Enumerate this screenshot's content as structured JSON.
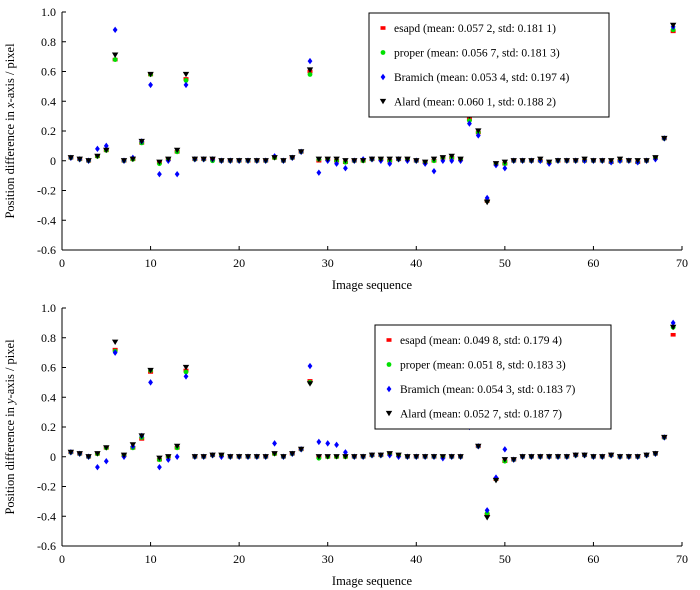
{
  "chart_data": [
    {
      "type": "scatter",
      "xlabel": "Image sequence",
      "ylabel_parts": [
        "Position difference in ",
        "x",
        "-axis / pixel"
      ],
      "xlim": [
        0,
        70
      ],
      "ylim": [
        -0.6,
        1.0
      ],
      "xticks": [
        0,
        10,
        20,
        30,
        40,
        50,
        60,
        70
      ],
      "yticks": [
        -0.6,
        -0.4,
        -0.2,
        0,
        0.2,
        0.4,
        0.6,
        0.8,
        1.0
      ],
      "grid": false,
      "legend_position": "top-right",
      "x": [
        1,
        2,
        3,
        4,
        5,
        6,
        7,
        8,
        9,
        10,
        11,
        12,
        13,
        14,
        15,
        16,
        17,
        18,
        19,
        20,
        21,
        22,
        23,
        24,
        25,
        26,
        27,
        28,
        29,
        30,
        31,
        32,
        33,
        34,
        35,
        36,
        37,
        38,
        39,
        40,
        41,
        42,
        43,
        44,
        45,
        46,
        47,
        48,
        49,
        50,
        51,
        52,
        53,
        54,
        55,
        56,
        57,
        58,
        59,
        60,
        61,
        62,
        63,
        64,
        65,
        66,
        67,
        68,
        69
      ],
      "series": [
        {
          "name": "esapd (mean: 0.057 2, std: 0.181 1)",
          "color": "#ff0000",
          "marker": "square",
          "values": [
            0.02,
            0.01,
            0.0,
            0.03,
            0.07,
            0.68,
            0.0,
            0.01,
            0.12,
            0.58,
            -0.01,
            0.01,
            0.06,
            0.55,
            0.01,
            0.01,
            0.01,
            0.0,
            0.0,
            0.0,
            0.0,
            0.0,
            0.0,
            0.02,
            0.0,
            0.02,
            0.06,
            0.6,
            0.0,
            0.01,
            0.0,
            -0.01,
            0.0,
            0.0,
            0.01,
            0.01,
            0.0,
            0.01,
            0.01,
            0.0,
            -0.01,
            0.0,
            0.02,
            0.02,
            0.01,
            0.28,
            0.19,
            -0.27,
            -0.02,
            -0.02,
            0.0,
            0.0,
            0.0,
            0.0,
            -0.01,
            0.0,
            0.0,
            0.0,
            0.0,
            0.0,
            0.0,
            -0.01,
            0.0,
            0.0,
            -0.01,
            0.0,
            0.02,
            0.15,
            0.87
          ]
        },
        {
          "name": "proper (mean: 0.056 7, std: 0.181 3)",
          "color": "#00e000",
          "marker": "circle",
          "values": [
            0.02,
            0.01,
            0.0,
            0.03,
            0.07,
            0.68,
            0.0,
            0.01,
            0.12,
            0.58,
            -0.02,
            0.01,
            0.06,
            0.54,
            0.01,
            0.01,
            0.0,
            0.0,
            0.0,
            0.0,
            0.0,
            0.0,
            0.0,
            0.02,
            0.0,
            0.02,
            0.06,
            0.58,
            0.01,
            0.01,
            0.0,
            -0.01,
            0.0,
            0.0,
            0.01,
            0.01,
            0.0,
            0.01,
            0.01,
            0.0,
            -0.01,
            0.0,
            0.02,
            0.02,
            0.01,
            0.27,
            0.19,
            -0.27,
            -0.02,
            -0.02,
            0.0,
            0.0,
            0.0,
            0.0,
            -0.01,
            0.0,
            0.0,
            0.0,
            0.0,
            0.0,
            0.0,
            -0.01,
            0.0,
            0.0,
            -0.01,
            0.0,
            0.02,
            0.15,
            0.88
          ]
        },
        {
          "name": "Bramich (mean: 0.053 4, std: 0.197 4)",
          "color": "#0000ff",
          "marker": "diamond",
          "values": [
            0.02,
            0.01,
            0.0,
            0.08,
            0.1,
            0.88,
            0.0,
            0.02,
            0.13,
            0.51,
            -0.09,
            0.0,
            -0.09,
            0.51,
            0.01,
            0.01,
            0.01,
            0.0,
            0.0,
            0.0,
            0.0,
            0.0,
            0.0,
            0.03,
            0.0,
            0.02,
            0.06,
            0.67,
            -0.08,
            0.0,
            -0.02,
            -0.05,
            0.0,
            0.01,
            0.01,
            0.0,
            -0.02,
            0.01,
            0.0,
            0.0,
            -0.02,
            -0.07,
            0.0,
            0.0,
            0.0,
            0.25,
            0.17,
            -0.25,
            -0.03,
            -0.05,
            0.0,
            0.0,
            0.0,
            0.0,
            -0.02,
            0.0,
            0.0,
            0.0,
            0.0,
            0.0,
            0.0,
            -0.01,
            0.0,
            0.0,
            -0.01,
            0.0,
            0.01,
            0.15,
            0.9
          ]
        },
        {
          "name": "Alard (mean: 0.060 1, std: 0.188 2)",
          "color": "#000000",
          "marker": "triangle-down",
          "values": [
            0.02,
            0.01,
            0.0,
            0.03,
            0.07,
            0.71,
            0.0,
            0.01,
            0.13,
            0.58,
            -0.01,
            0.01,
            0.07,
            0.58,
            0.01,
            0.01,
            0.01,
            0.0,
            0.0,
            0.0,
            0.0,
            0.0,
            0.0,
            0.02,
            0.0,
            0.02,
            0.06,
            0.61,
            0.01,
            0.01,
            0.01,
            0.0,
            0.0,
            0.0,
            0.01,
            0.01,
            0.01,
            0.01,
            0.01,
            0.0,
            -0.01,
            0.01,
            0.02,
            0.03,
            0.01,
            0.3,
            0.2,
            -0.28,
            -0.02,
            -0.01,
            0.0,
            0.0,
            0.0,
            0.01,
            -0.01,
            0.0,
            0.0,
            0.0,
            0.01,
            0.0,
            0.0,
            0.0,
            0.01,
            0.0,
            0.0,
            0.0,
            0.02,
            0.15,
            0.91
          ]
        }
      ]
    },
    {
      "type": "scatter",
      "xlabel": "Image sequence",
      "ylabel_parts": [
        "Position difference in ",
        "y",
        "-axis / pixel"
      ],
      "xlim": [
        0,
        70
      ],
      "ylim": [
        -0.6,
        1.0
      ],
      "xticks": [
        0,
        10,
        20,
        30,
        40,
        50,
        60,
        70
      ],
      "yticks": [
        -0.6,
        -0.4,
        -0.2,
        0,
        0.2,
        0.4,
        0.6,
        0.8,
        1.0
      ],
      "grid": false,
      "legend_position": "top-right",
      "x": [
        1,
        2,
        3,
        4,
        5,
        6,
        7,
        8,
        9,
        10,
        11,
        12,
        13,
        14,
        15,
        16,
        17,
        18,
        19,
        20,
        21,
        22,
        23,
        24,
        25,
        26,
        27,
        28,
        29,
        30,
        31,
        32,
        33,
        34,
        35,
        36,
        37,
        38,
        39,
        40,
        41,
        42,
        43,
        44,
        45,
        46,
        47,
        48,
        49,
        50,
        51,
        52,
        53,
        54,
        55,
        56,
        57,
        58,
        59,
        60,
        61,
        62,
        63,
        64,
        65,
        66,
        67,
        68,
        69
      ],
      "series": [
        {
          "name": "esapd (mean: 0.049 8, std: 0.179 4)",
          "color": "#ff0000",
          "marker": "square",
          "values": [
            0.03,
            0.02,
            0.0,
            0.02,
            0.06,
            0.72,
            0.01,
            0.06,
            0.12,
            0.57,
            -0.02,
            0.0,
            0.06,
            0.58,
            0.0,
            0.0,
            0.01,
            0.01,
            0.0,
            0.0,
            0.0,
            0.0,
            0.0,
            0.02,
            0.0,
            0.02,
            0.05,
            0.51,
            0.0,
            0.0,
            0.0,
            0.0,
            0.0,
            0.0,
            0.01,
            0.01,
            0.02,
            0.01,
            0.0,
            0.0,
            0.0,
            0.0,
            0.0,
            0.0,
            0.0,
            0.22,
            0.07,
            -0.39,
            -0.15,
            -0.03,
            -0.02,
            0.0,
            0.0,
            0.0,
            0.0,
            0.0,
            0.0,
            0.01,
            0.01,
            0.0,
            0.0,
            0.01,
            0.0,
            0.0,
            0.0,
            0.01,
            0.02,
            0.13,
            0.82
          ]
        },
        {
          "name": "proper (mean: 0.051 8, std: 0.183 3)",
          "color": "#00e000",
          "marker": "circle",
          "values": [
            0.03,
            0.02,
            0.0,
            0.02,
            0.06,
            0.71,
            0.01,
            0.06,
            0.13,
            0.58,
            -0.02,
            0.0,
            0.06,
            0.57,
            0.0,
            0.0,
            0.01,
            0.01,
            0.0,
            0.0,
            0.0,
            0.0,
            0.0,
            0.02,
            0.0,
            0.02,
            0.05,
            0.5,
            -0.01,
            0.0,
            0.0,
            0.0,
            0.0,
            0.0,
            0.01,
            0.01,
            0.02,
            0.01,
            0.0,
            0.0,
            0.0,
            0.0,
            0.0,
            0.0,
            0.0,
            0.22,
            0.07,
            -0.38,
            -0.15,
            -0.03,
            -0.02,
            0.0,
            0.0,
            0.0,
            0.0,
            0.0,
            0.0,
            0.01,
            0.01,
            0.0,
            0.0,
            0.01,
            0.0,
            0.0,
            0.0,
            0.01,
            0.02,
            0.13,
            0.87
          ]
        },
        {
          "name": "Bramich (mean: 0.054 3, std: 0.183 7)",
          "color": "#0000ff",
          "marker": "diamond",
          "values": [
            0.03,
            0.02,
            0.0,
            -0.07,
            -0.03,
            0.7,
            0.0,
            0.07,
            0.14,
            0.5,
            -0.07,
            -0.02,
            0.0,
            0.54,
            0.0,
            0.0,
            0.01,
            0.0,
            0.0,
            0.0,
            0.0,
            0.0,
            0.0,
            0.09,
            0.0,
            0.02,
            0.05,
            0.61,
            0.1,
            0.09,
            0.08,
            0.03,
            0.0,
            0.0,
            0.01,
            0.01,
            0.01,
            0.0,
            0.0,
            0.0,
            0.0,
            0.0,
            -0.01,
            0.0,
            0.0,
            0.2,
            0.07,
            -0.36,
            -0.14,
            0.05,
            -0.02,
            0.0,
            0.0,
            0.0,
            0.0,
            0.0,
            0.0,
            0.01,
            0.01,
            0.0,
            0.0,
            0.01,
            0.0,
            0.0,
            0.0,
            0.01,
            0.02,
            0.13,
            0.9
          ]
        },
        {
          "name": "Alard (mean: 0.052 7, std: 0.187 7)",
          "color": "#000000",
          "marker": "triangle-down",
          "values": [
            0.03,
            0.02,
            0.0,
            0.02,
            0.06,
            0.77,
            0.01,
            0.08,
            0.14,
            0.58,
            -0.01,
            0.0,
            0.07,
            0.6,
            0.0,
            0.0,
            0.01,
            0.01,
            0.0,
            0.0,
            0.0,
            0.0,
            0.0,
            0.02,
            0.0,
            0.02,
            0.05,
            0.49,
            0.0,
            0.0,
            0.0,
            0.0,
            0.0,
            0.0,
            0.01,
            0.01,
            0.02,
            0.01,
            0.0,
            0.0,
            0.0,
            0.0,
            0.0,
            0.0,
            0.0,
            0.23,
            0.07,
            -0.41,
            -0.16,
            -0.02,
            -0.02,
            0.0,
            0.0,
            0.0,
            0.0,
            0.0,
            0.0,
            0.01,
            0.01,
            0.0,
            0.0,
            0.01,
            0.0,
            0.0,
            0.0,
            0.01,
            0.02,
            0.13,
            0.87
          ]
        }
      ]
    }
  ]
}
